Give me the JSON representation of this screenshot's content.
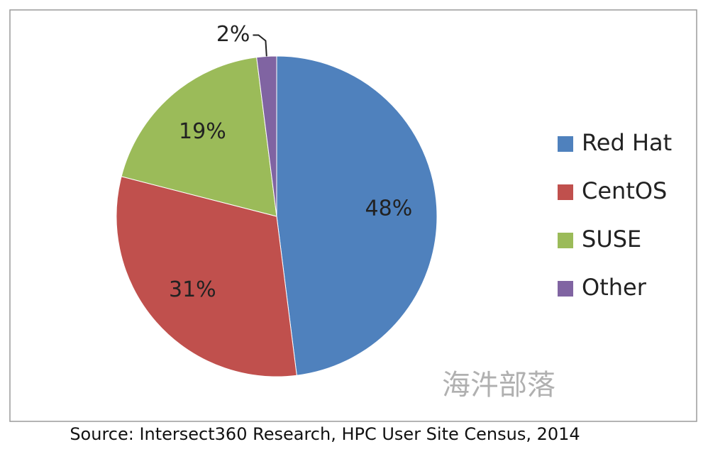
{
  "chart_data": {
    "type": "pie",
    "categories": [
      "Red Hat",
      "CentOS",
      "SUSE",
      "Other"
    ],
    "values": [
      48,
      31,
      19,
      2
    ],
    "value_labels": [
      "48%",
      "31%",
      "19%",
      "2%"
    ],
    "colors": [
      "#4f81bd",
      "#c0504d",
      "#9bbb59",
      "#8064a2"
    ],
    "legend": "right",
    "watermark": "海汼部落",
    "source": "Source: Intersect360 Research, HPC User Site Census, 2014"
  }
}
